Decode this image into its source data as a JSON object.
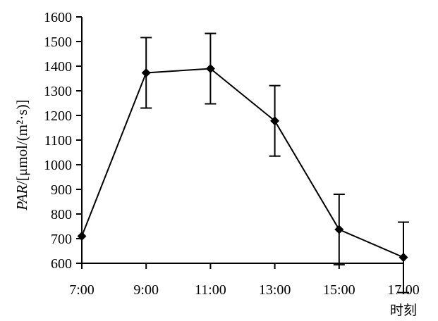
{
  "chart_data": {
    "type": "line",
    "x": [
      "7:00",
      "9:00",
      "11:00",
      "13:00",
      "15:00",
      "17:00"
    ],
    "series": [
      {
        "values": [
          710,
          1373,
          1390,
          1178,
          737,
          624
        ],
        "error": [
          null,
          143,
          143,
          143,
          143,
          143
        ]
      }
    ],
    "xlabel": "时刻",
    "ylabel_italic": "PAR",
    "ylabel_rest": "/[μmol/(m²·s)]",
    "ylim": [
      600,
      1600
    ],
    "yticks": [
      600,
      700,
      800,
      900,
      1000,
      1100,
      1200,
      1300,
      1400,
      1500,
      1600
    ],
    "grid": false,
    "color": "#000000",
    "marker": "diamond"
  }
}
